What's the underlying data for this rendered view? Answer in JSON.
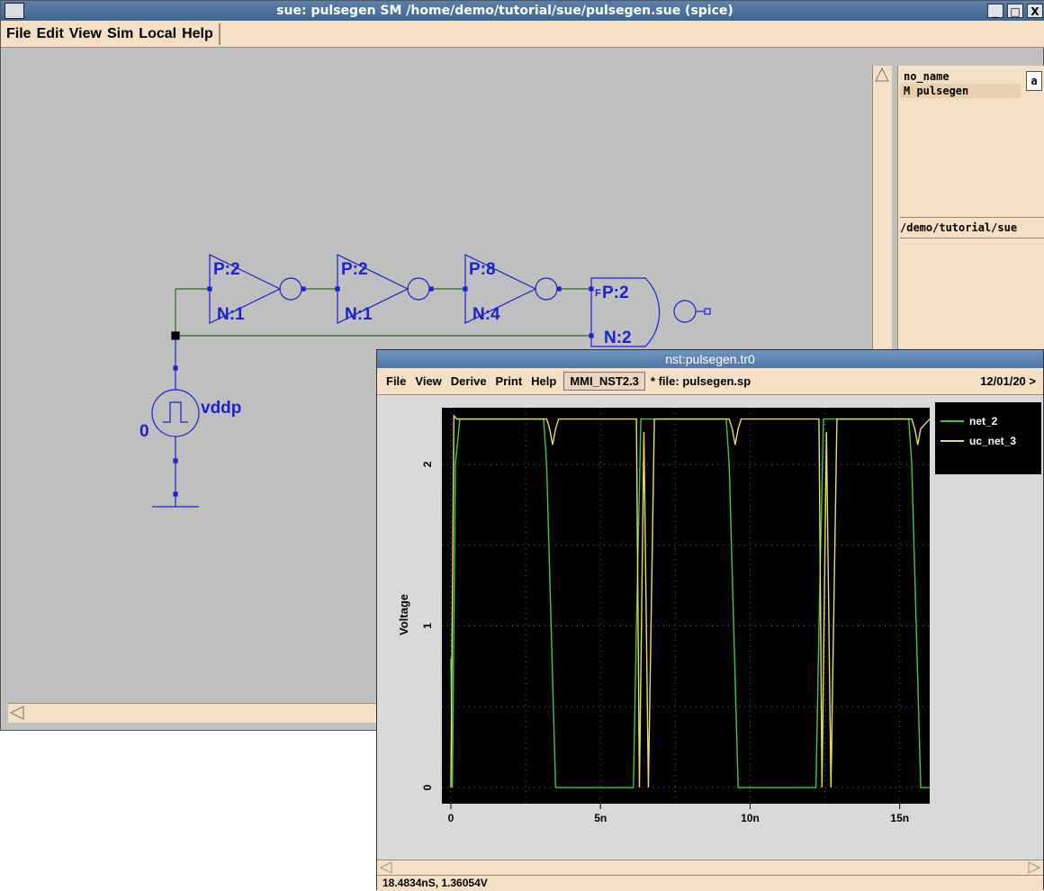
{
  "main_window": {
    "title": "sue:  pulsegen SM  /home/demo/tutorial/sue/pulsegen.sue  (spice)",
    "controls": [
      "_",
      "□",
      "X"
    ],
    "menu": [
      "File",
      "Edit",
      "View",
      "Sim",
      "Local",
      "Help"
    ]
  },
  "schematic": {
    "inverters": [
      {
        "p": "P:2",
        "n": "N:1"
      },
      {
        "p": "P:2",
        "n": "N:1"
      },
      {
        "p": "P:8",
        "n": "N:4"
      }
    ],
    "nand": {
      "p": "P:2",
      "n": "N:2",
      "flag": "F"
    },
    "source": {
      "name": "vddp",
      "label": "0"
    }
  },
  "side_panel": {
    "button_label": "a",
    "cells": [
      {
        "label": "   no_name",
        "selected": false
      },
      {
        "label": "M pulsegen",
        "selected": true
      }
    ],
    "path": "/demo/tutorial/sue"
  },
  "wave_window": {
    "title": "nst:pulsegen.tr0",
    "menu": [
      "File",
      "View",
      "Derive",
      "Print",
      "Help"
    ],
    "design_button": "MMI_NST2.3",
    "file_label": "* file: pulsegen.sp",
    "date_label": "12/01/20 >",
    "status": "18.4834nS, 1.36054V"
  },
  "chart_data": {
    "type": "line",
    "ylabel": "Voltage",
    "xlabel": "",
    "xlim": [
      -0.3,
      16
    ],
    "ylim": [
      -0.1,
      2.35
    ],
    "x_ticks": [
      0,
      5,
      10,
      15
    ],
    "x_tick_labels": [
      "0",
      "5n",
      "10n",
      "15n"
    ],
    "y_ticks": [
      0,
      1,
      2
    ],
    "y_tick_labels": [
      "0",
      "1",
      "2"
    ],
    "grid": true,
    "legend": "right",
    "series": [
      {
        "name": "net_2",
        "color": "#3cc84b",
        "x": [
          0,
          0.05,
          0.15,
          0.3,
          0.4,
          3.1,
          3.2,
          3.5,
          3.8,
          6.1,
          6.2,
          6.35,
          6.5,
          9.2,
          9.3,
          9.6,
          9.9,
          12.2,
          12.3,
          12.45,
          12.6,
          15.3,
          15.4,
          15.7,
          16
        ],
        "y": [
          0.8,
          0.0,
          2.0,
          2.28,
          2.28,
          2.28,
          2.0,
          0.0,
          0.0,
          0.0,
          1.0,
          2.28,
          2.28,
          2.28,
          2.0,
          0.0,
          0.0,
          0.0,
          1.0,
          2.28,
          2.28,
          2.28,
          2.0,
          0.0,
          0.0
        ]
      },
      {
        "name": "uc_net_3",
        "color": "#e7e05c",
        "x": [
          0,
          0.1,
          0.2,
          0.35,
          3.2,
          3.3,
          3.4,
          3.5,
          3.6,
          6.2,
          6.3,
          6.45,
          6.6,
          6.8,
          9.3,
          9.4,
          9.5,
          9.6,
          9.7,
          12.3,
          12.4,
          12.55,
          12.7,
          12.9,
          15.4,
          15.5,
          15.6,
          15.7,
          16
        ],
        "y": [
          0.0,
          2.3,
          2.28,
          2.28,
          2.28,
          2.22,
          2.12,
          2.22,
          2.28,
          2.28,
          0.0,
          2.2,
          0.0,
          2.28,
          2.28,
          2.22,
          2.12,
          2.22,
          2.28,
          2.28,
          0.0,
          2.2,
          0.0,
          2.28,
          2.28,
          2.22,
          2.12,
          2.22,
          2.28
        ]
      }
    ]
  }
}
